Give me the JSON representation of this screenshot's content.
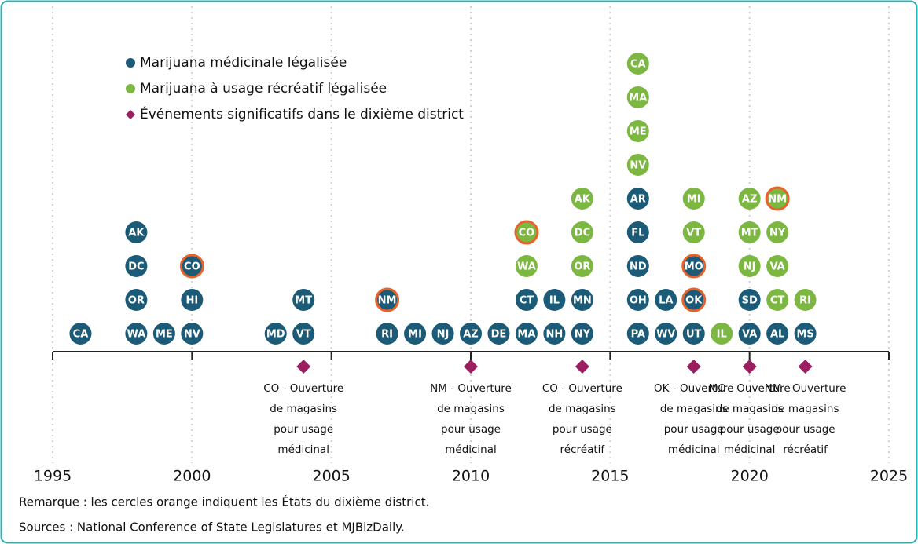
{
  "chart_data": {
    "type": "timeline",
    "series": [
      {
        "name": "Marijuana médicinale légalisée",
        "color": "#1b5b78"
      },
      {
        "name": "Marijuana à usage récréatif légalisée",
        "color": "#7cb742"
      },
      {
        "name": "Événements significatifs dans le dixième district",
        "color": "#9b1f60"
      }
    ],
    "district_color": "#e8632b",
    "xlim": [
      1995,
      2025
    ],
    "xticks": [
      1995,
      2000,
      2005,
      2010,
      2015,
      2020,
      2025
    ],
    "grid": true,
    "columns": [
      {
        "year": 1996,
        "states": [
          {
            "label": "CA",
            "series": 0
          }
        ]
      },
      {
        "year": 1998,
        "states": [
          {
            "label": "WA",
            "series": 0
          },
          {
            "label": "OR",
            "series": 0
          },
          {
            "label": "DC",
            "series": 0
          },
          {
            "label": "AK",
            "series": 0
          }
        ]
      },
      {
        "year": 1999,
        "states": [
          {
            "label": "ME",
            "series": 0
          }
        ]
      },
      {
        "year": 2000,
        "states": [
          {
            "label": "NV",
            "series": 0
          },
          {
            "label": "HI",
            "series": 0
          },
          {
            "label": "CO",
            "series": 0,
            "district": true
          }
        ]
      },
      {
        "year": 2003,
        "states": [
          {
            "label": "MD",
            "series": 0
          }
        ]
      },
      {
        "year": 2004,
        "states": [
          {
            "label": "VT",
            "series": 0
          },
          {
            "label": "MT",
            "series": 0
          }
        ]
      },
      {
        "year": 2007,
        "states": [
          {
            "label": "RI",
            "series": 0
          },
          {
            "label": "NM",
            "series": 0,
            "district": true
          }
        ]
      },
      {
        "year": 2008,
        "states": [
          {
            "label": "MI",
            "series": 0
          }
        ]
      },
      {
        "year": 2009,
        "states": [
          {
            "label": "NJ",
            "series": 0
          }
        ]
      },
      {
        "year": 2010,
        "states": [
          {
            "label": "AZ",
            "series": 0
          }
        ]
      },
      {
        "year": 2011,
        "states": [
          {
            "label": "DE",
            "series": 0
          }
        ]
      },
      {
        "year": 2012,
        "states": [
          {
            "label": "MA",
            "series": 0
          },
          {
            "label": "CT",
            "series": 0
          },
          {
            "label": "WA",
            "series": 1
          },
          {
            "label": "CO",
            "series": 1,
            "district": true
          }
        ]
      },
      {
        "year": 2013,
        "states": [
          {
            "label": "NH",
            "series": 0
          },
          {
            "label": "IL",
            "series": 0
          }
        ]
      },
      {
        "year": 2014,
        "states": [
          {
            "label": "NY",
            "series": 0
          },
          {
            "label": "MN",
            "series": 0
          },
          {
            "label": "OR",
            "series": 1
          },
          {
            "label": "DC",
            "series": 1
          },
          {
            "label": "AK",
            "series": 1
          }
        ]
      },
      {
        "year": 2016,
        "states": [
          {
            "label": "PA",
            "series": 0
          },
          {
            "label": "OH",
            "series": 0
          },
          {
            "label": "ND",
            "series": 0
          },
          {
            "label": "FL",
            "series": 0
          },
          {
            "label": "AR",
            "series": 0
          },
          {
            "label": "NV",
            "series": 1
          },
          {
            "label": "ME",
            "series": 1
          },
          {
            "label": "MA",
            "series": 1
          },
          {
            "label": "CA",
            "series": 1
          }
        ]
      },
      {
        "year": 2017,
        "states": [
          {
            "label": "WV",
            "series": 0
          },
          {
            "label": "LA",
            "series": 0
          }
        ]
      },
      {
        "year": 2018,
        "states": [
          {
            "label": "UT",
            "series": 0
          },
          {
            "label": "OK",
            "series": 0,
            "district": true
          },
          {
            "label": "MO",
            "series": 0,
            "district": true
          },
          {
            "label": "VT",
            "series": 1
          },
          {
            "label": "MI",
            "series": 1
          }
        ]
      },
      {
        "year": 2019,
        "states": [
          {
            "label": "IL",
            "series": 1
          }
        ]
      },
      {
        "year": 2020,
        "states": [
          {
            "label": "VA",
            "series": 0
          },
          {
            "label": "SD",
            "series": 0
          },
          {
            "label": "NJ",
            "series": 1
          },
          {
            "label": "MT",
            "series": 1
          },
          {
            "label": "AZ",
            "series": 1
          }
        ]
      },
      {
        "year": 2021,
        "states": [
          {
            "label": "AL",
            "series": 0
          },
          {
            "label": "CT",
            "series": 1
          },
          {
            "label": "VA",
            "series": 1
          },
          {
            "label": "NY",
            "series": 1
          },
          {
            "label": "NM",
            "series": 1,
            "district": true
          }
        ]
      },
      {
        "year": 2022,
        "states": [
          {
            "label": "MS",
            "series": 0
          },
          {
            "label": "RI",
            "series": 1
          }
        ]
      }
    ],
    "events": [
      {
        "year": 2004,
        "lines": [
          "CO - Ouverture",
          "de magasins",
          "pour usage",
          "médicinal"
        ]
      },
      {
        "year": 2010,
        "lines": [
          "NM - Ouverture",
          "de magasins",
          "pour usage",
          "médicinal"
        ]
      },
      {
        "year": 2014,
        "lines": [
          "CO - Ouverture",
          "de magasins",
          "pour usage",
          "récréatif"
        ]
      },
      {
        "year": 2018,
        "lines": [
          "OK - Ouverture",
          "de magasins",
          "pour usage",
          "médicinal"
        ]
      },
      {
        "year": 2020,
        "lines": [
          "MO - Ouverture",
          "de magasins",
          "pour usage",
          "médicinal"
        ]
      },
      {
        "year": 2022,
        "lines": [
          "NM - Ouverture",
          "de magasins",
          "pour usage",
          "récréatif"
        ]
      }
    ],
    "notes": [
      "Remarque : les cercles orange indiquent les États du dixième district.",
      "Sources : National Conference of State Legislatures et MJBizDaily."
    ]
  }
}
